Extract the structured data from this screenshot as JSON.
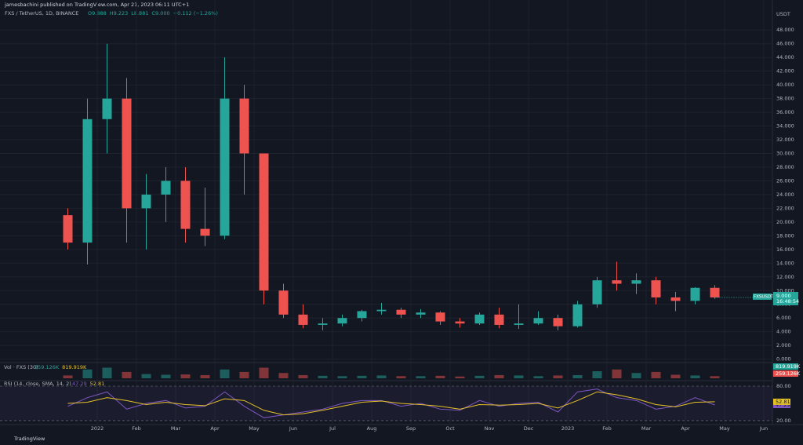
{
  "header": {
    "publisher": "jamesbachini published on TradingView.com, Apr 21, 2023 06:11 UTC+1",
    "footer": "TradingView"
  },
  "chart_data": {
    "type": "candlestick",
    "symbol": "FXS / TetherUS, 1D, BINANCE",
    "legend_values": [
      "O9.888",
      "H9.223",
      "L8.881",
      "C9.000",
      "−0.112 (−1.26%)"
    ],
    "currency": "USDT",
    "price_tag": [
      "FXSUSDT",
      "9.000",
      "16:48:54"
    ],
    "up_color": "#26a69a",
    "down_color": "#ef5350",
    "categories": [
      null,
      null,
      "2022",
      null,
      "Feb",
      null,
      "Mar",
      null,
      "Apr",
      null,
      "May",
      null,
      "Jun",
      null,
      "Jul",
      null,
      "Aug",
      null,
      "Sep",
      null,
      "Oct",
      null,
      "Nov",
      null,
      "Dec",
      null,
      "2023",
      null,
      "Feb",
      null,
      "Mar",
      null,
      "Apr",
      null,
      "May",
      null,
      "Jun",
      null
    ],
    "open": [
      21,
      17,
      35,
      38,
      22,
      24,
      26,
      19,
      18,
      38,
      30,
      10,
      6.5,
      5,
      5.2,
      6,
      7,
      7.2,
      6.5,
      6.8,
      5.5,
      5.2,
      6.5,
      5,
      5.2,
      6,
      4.8,
      8,
      11.5,
      11,
      11.5,
      9,
      8.5,
      10.4,
      null,
      null,
      null,
      null
    ],
    "high": [
      22,
      38,
      46,
      41,
      27,
      28,
      28,
      25,
      44,
      40,
      30,
      11,
      8,
      6,
      6.5,
      7.2,
      8.2,
      7.5,
      7.3,
      7,
      6,
      6.8,
      7.5,
      8,
      7,
      6.5,
      8.5,
      12,
      14.2,
      12.5,
      12,
      9.8,
      10.5,
      10.8,
      null,
      null,
      null,
      null
    ],
    "low": [
      16,
      13.8,
      30,
      17,
      16,
      20,
      17,
      16.5,
      17.5,
      24,
      8,
      6,
      4.5,
      4.2,
      4.8,
      5.5,
      6.5,
      6,
      6,
      5,
      4.6,
      5,
      4.5,
      4.4,
      5,
      4.2,
      4.6,
      7.5,
      10,
      9.5,
      8,
      7,
      8,
      8.8,
      null,
      null,
      null,
      null
    ],
    "close": [
      17,
      35,
      38,
      22,
      24,
      26,
      19,
      18,
      38,
      30,
      10,
      6.5,
      5,
      5.2,
      6,
      7,
      7.2,
      6.5,
      6.8,
      5.5,
      5.2,
      6.5,
      5,
      5.2,
      6,
      4.8,
      8,
      11.5,
      11,
      11.5,
      9,
      8.5,
      10.4,
      9.0,
      null,
      null,
      null,
      null
    ],
    "ylim": [
      -0.5,
      51
    ],
    "yticks": [
      {
        "value": 0,
        "label": "0.000"
      },
      {
        "value": 2,
        "label": "2.000"
      },
      {
        "value": 4,
        "label": "4.000"
      },
      {
        "value": 6,
        "label": "6.000"
      },
      {
        "value": 8,
        "label": "8.000"
      },
      {
        "value": 10,
        "label": "10.000"
      },
      {
        "value": 12,
        "label": "12.000"
      },
      {
        "value": 14,
        "label": "14.000"
      },
      {
        "value": 16,
        "label": "16.000"
      },
      {
        "value": 18,
        "label": "18.000"
      },
      {
        "value": 20,
        "label": "20.000"
      },
      {
        "value": 22,
        "label": "22.000"
      },
      {
        "value": 24,
        "label": "24.000"
      },
      {
        "value": 26,
        "label": "26.000"
      },
      {
        "value": 28,
        "label": "28.000"
      },
      {
        "value": 30,
        "label": "30.000"
      },
      {
        "value": 32,
        "label": "32.000"
      },
      {
        "value": 34,
        "label": "34.000"
      },
      {
        "value": 36,
        "label": "36.000"
      },
      {
        "value": 38,
        "label": "38.000"
      },
      {
        "value": 40,
        "label": "40.000"
      },
      {
        "value": 42,
        "label": "42.000"
      },
      {
        "value": 44,
        "label": "44.000"
      },
      {
        "value": 46,
        "label": "46.000"
      },
      {
        "value": 48,
        "label": "48.000"
      }
    ],
    "volume": {
      "name": "Vol · FXS (30)",
      "legend_values": [
        "259.126K",
        "819.919K"
      ],
      "color": "#26a69a",
      "values": [
        800,
        2500,
        3000,
        1800,
        1200,
        1000,
        1100,
        900,
        2500,
        1800,
        3000,
        1500,
        900,
        700,
        600,
        700,
        800,
        600,
        600,
        700,
        500,
        700,
        900,
        800,
        600,
        800,
        900,
        2000,
        2500,
        1500,
        1800,
        1000,
        800,
        600,
        null,
        null,
        null,
        null
      ],
      "ylim": [
        0,
        4000
      ]
    },
    "rsi": {
      "name": "RSI (14, close, SMA, 14, 2)",
      "legend_values": [
        "47.29",
        "52.81"
      ],
      "color": "#7e57c2",
      "ma_color": "#e6c229",
      "values": [
        45,
        60,
        70,
        40,
        50,
        55,
        42,
        45,
        70,
        45,
        25,
        30,
        35,
        40,
        50,
        55,
        55,
        45,
        50,
        40,
        38,
        55,
        45,
        50,
        52,
        35,
        70,
        75,
        60,
        55,
        40,
        45,
        60,
        47.29,
        null,
        null,
        null,
        null
      ],
      "ma": [
        50,
        52,
        60,
        55,
        48,
        52,
        48,
        46,
        58,
        55,
        38,
        30,
        32,
        38,
        45,
        52,
        54,
        50,
        48,
        45,
        40,
        48,
        47,
        48,
        50,
        42,
        55,
        70,
        65,
        58,
        48,
        44,
        52,
        52.81,
        null,
        null,
        null,
        null
      ],
      "ylim": [
        14.5,
        88.2
      ],
      "yticks": [
        {
          "value": 20,
          "label": "20.00"
        },
        {
          "value": 80,
          "label": "80.00"
        }
      ]
    }
  }
}
